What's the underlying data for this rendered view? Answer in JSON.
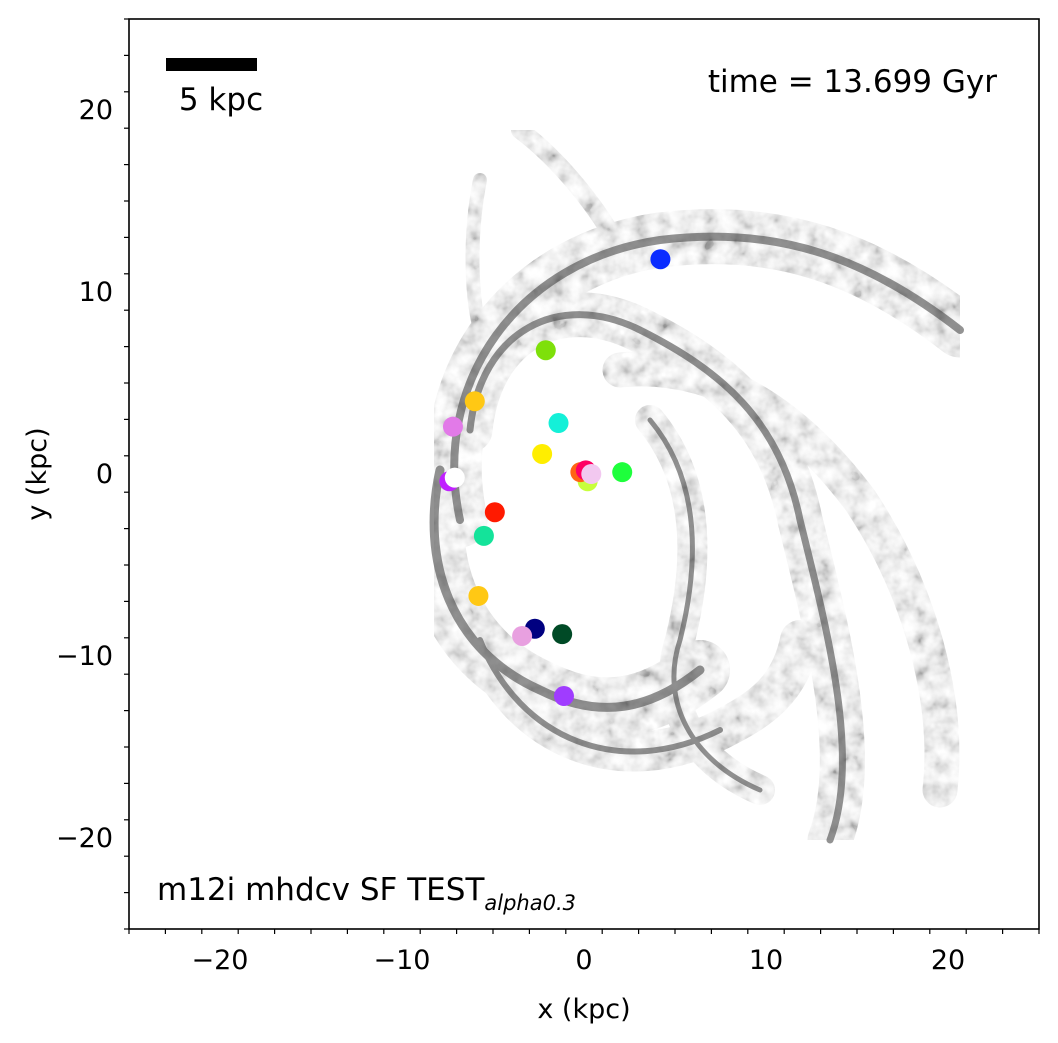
{
  "chart_data": {
    "type": "scatter",
    "xlabel": "x (kpc)",
    "ylabel": "y (kpc)",
    "xlim": [
      -25,
      25
    ],
    "ylim": [
      -25,
      25
    ],
    "xticks": [
      -20,
      -10,
      0,
      10,
      20
    ],
    "yticks": [
      -20,
      -10,
      0,
      10,
      20
    ],
    "xtick_labels": [
      "−20",
      "−10",
      "0",
      "10",
      "20"
    ],
    "ytick_labels": [
      "−20",
      "−10",
      "0",
      "10",
      "20"
    ],
    "grid": false,
    "background": "grayscale gas density map of a spiral galaxy",
    "time_label": "time = 13.699 Gyr",
    "scalebar": {
      "label": "5 kpc",
      "length_kpc": 5
    },
    "sim_label": {
      "main": "m12i mhdcv SF TEST",
      "subscript": "alpha0.3"
    },
    "points": [
      {
        "x": 4.2,
        "y": 11.8,
        "color": "#0a2cff"
      },
      {
        "x": -2.1,
        "y": 6.8,
        "color": "#7ee00a"
      },
      {
        "x": -6.0,
        "y": 4.0,
        "color": "#ffc814"
      },
      {
        "x": -7.2,
        "y": 2.6,
        "color": "#e27ae8"
      },
      {
        "x": -1.4,
        "y": 2.8,
        "color": "#14f0d8"
      },
      {
        "x": -2.3,
        "y": 1.1,
        "color": "#ffee00"
      },
      {
        "x": -7.4,
        "y": -0.4,
        "color": "#c020ff"
      },
      {
        "x": -7.1,
        "y": -0.2,
        "color": "#ffffff"
      },
      {
        "x": -4.9,
        "y": -2.1,
        "color": "#ff1a00"
      },
      {
        "x": -5.5,
        "y": -3.4,
        "color": "#14e39a"
      },
      {
        "x": 0.2,
        "y": -0.4,
        "color": "#c8ff3c"
      },
      {
        "x": -0.2,
        "y": 0.1,
        "color": "#ff6414"
      },
      {
        "x": 0.1,
        "y": 0.2,
        "color": "#ff0064"
      },
      {
        "x": 0.4,
        "y": 0.0,
        "color": "#f2c8f0"
      },
      {
        "x": 2.1,
        "y": 0.1,
        "color": "#1eff3c"
      },
      {
        "x": -5.8,
        "y": -6.7,
        "color": "#ffc814"
      },
      {
        "x": -2.7,
        "y": -8.5,
        "color": "#000080"
      },
      {
        "x": -3.4,
        "y": -8.9,
        "color": "#e8a0e0"
      },
      {
        "x": -1.2,
        "y": -8.8,
        "color": "#004a26"
      },
      {
        "x": -1.1,
        "y": -12.2,
        "color": "#a03cff"
      }
    ]
  }
}
